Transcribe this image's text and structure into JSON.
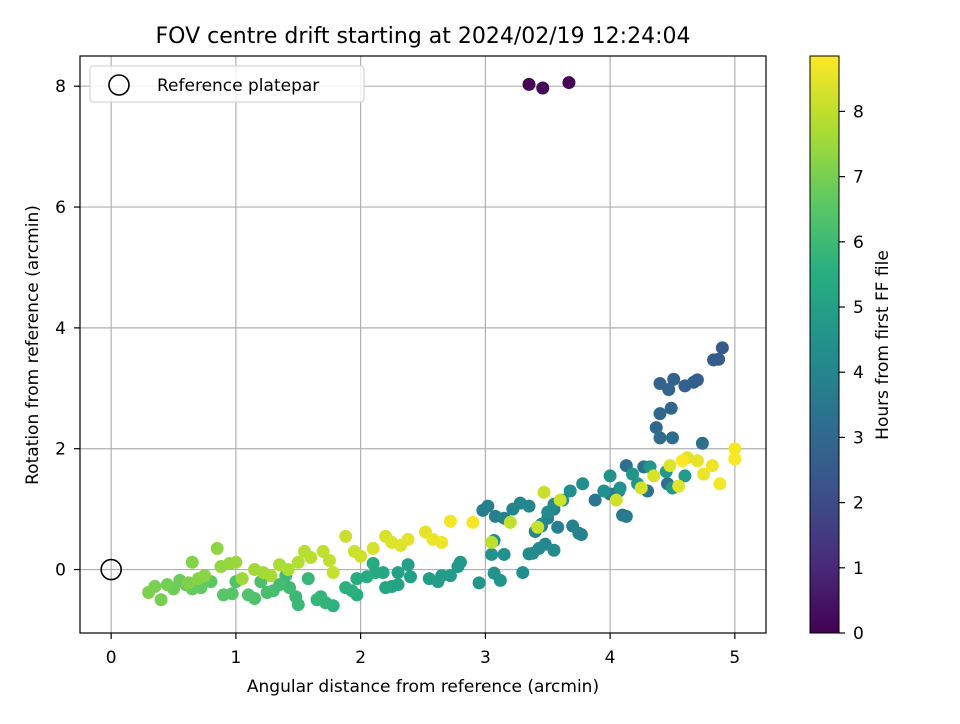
{
  "chart_data": {
    "type": "scatter",
    "title": "FOV centre drift starting at 2024/02/19 12:24:04",
    "xlabel": "Angular distance from reference (arcmin)",
    "ylabel": "Rotation from reference (arcmin)",
    "xlim": [
      -0.25,
      5.25
    ],
    "ylim": [
      -1.05,
      8.5
    ],
    "xticks": [
      0,
      1,
      2,
      3,
      4,
      5
    ],
    "yticks": [
      0,
      2,
      4,
      6,
      8
    ],
    "grid": true,
    "legend": {
      "placement": "top-left",
      "entries": [
        {
          "label": "Reference platepar",
          "marker": "open-circle"
        }
      ]
    },
    "reference_point": {
      "x": 0,
      "y": 0
    },
    "colorbar": {
      "label": "Hours from first FF file",
      "range": [
        0,
        8.85
      ],
      "ticks": [
        0,
        1,
        2,
        3,
        4,
        5,
        6,
        7,
        8
      ],
      "colormap": "viridis"
    },
    "points": [
      [
        3.35,
        8.03,
        0.05
      ],
      [
        3.46,
        7.97,
        0.08
      ],
      [
        3.67,
        8.06,
        0.1
      ],
      [
        4.9,
        3.67,
        2.5
      ],
      [
        4.83,
        3.47,
        2.55
      ],
      [
        4.87,
        3.48,
        2.6
      ],
      [
        4.7,
        3.14,
        2.65
      ],
      [
        4.67,
        3.1,
        2.7
      ],
      [
        4.6,
        3.04,
        2.75
      ],
      [
        4.51,
        3.15,
        2.8
      ],
      [
        4.4,
        3.08,
        2.85
      ],
      [
        4.47,
        2.98,
        2.9
      ],
      [
        4.49,
        2.67,
        2.95
      ],
      [
        4.4,
        2.58,
        3.0
      ],
      [
        4.37,
        2.35,
        3.05
      ],
      [
        4.4,
        2.18,
        3.1
      ],
      [
        4.5,
        2.18,
        3.15
      ],
      [
        4.74,
        2.09,
        3.2
      ],
      [
        4.13,
        1.72,
        3.25
      ],
      [
        4.27,
        1.7,
        3.3
      ],
      [
        4.46,
        1.42,
        3.35
      ],
      [
        4.3,
        1.3,
        3.4
      ],
      [
        3.88,
        1.15,
        3.45
      ],
      [
        4.07,
        1.3,
        3.5
      ],
      [
        4.0,
        1.25,
        3.55
      ],
      [
        4.1,
        0.9,
        3.6
      ],
      [
        4.13,
        0.88,
        3.65
      ],
      [
        3.55,
        1.0,
        3.7
      ],
      [
        3.5,
        0.85,
        3.75
      ],
      [
        3.58,
        0.7,
        3.8
      ],
      [
        3.7,
        0.72,
        3.85
      ],
      [
        3.75,
        0.6,
        3.9
      ],
      [
        3.77,
        0.58,
        3.95
      ],
      [
        3.45,
        0.72,
        4.0
      ],
      [
        3.4,
        0.63,
        4.05
      ],
      [
        3.48,
        0.42,
        4.1
      ],
      [
        3.43,
        0.35,
        4.15
      ],
      [
        3.55,
        0.32,
        4.2
      ],
      [
        3.38,
        0.27,
        4.25
      ],
      [
        3.35,
        0.26,
        4.3
      ],
      [
        3.3,
        -0.05,
        4.35
      ],
      [
        3.07,
        0.48,
        4.4
      ],
      [
        3.15,
        0.25,
        4.45
      ],
      [
        3.05,
        0.25,
        4.5
      ],
      [
        3.07,
        -0.06,
        4.55
      ],
      [
        3.12,
        -0.18,
        4.6
      ],
      [
        2.95,
        -0.22,
        4.65
      ],
      [
        2.8,
        0.12,
        4.7
      ],
      [
        2.78,
        0.05,
        4.75
      ],
      [
        2.72,
        -0.1,
        4.8
      ],
      [
        2.65,
        -0.1,
        4.85
      ],
      [
        2.62,
        -0.2,
        4.9
      ],
      [
        2.55,
        -0.15,
        4.95
      ],
      [
        2.4,
        -0.12,
        5.0
      ],
      [
        2.38,
        0.08,
        5.05
      ],
      [
        2.3,
        -0.05,
        5.1
      ],
      [
        2.3,
        -0.25,
        5.15
      ],
      [
        2.25,
        -0.28,
        5.2
      ],
      [
        2.2,
        -0.3,
        5.25
      ],
      [
        2.18,
        -0.05,
        5.3
      ],
      [
        2.12,
        -0.05,
        5.35
      ],
      [
        2.1,
        0.1,
        5.4
      ],
      [
        2.05,
        -0.12,
        5.45
      ],
      [
        1.97,
        -0.15,
        5.5
      ],
      [
        1.97,
        -0.42,
        5.55
      ],
      [
        1.88,
        -0.3,
        5.6
      ],
      [
        1.93,
        -0.35,
        5.65
      ],
      [
        1.78,
        -0.6,
        5.7
      ],
      [
        1.72,
        -0.55,
        5.75
      ],
      [
        1.68,
        -0.45,
        5.8
      ],
      [
        1.65,
        -0.5,
        5.85
      ],
      [
        1.58,
        -0.15,
        5.9
      ],
      [
        1.5,
        -0.58,
        5.95
      ],
      [
        1.48,
        -0.45,
        6.0
      ],
      [
        1.43,
        -0.3,
        6.05
      ],
      [
        1.4,
        -0.1,
        6.1
      ],
      [
        1.35,
        -0.25,
        6.15
      ],
      [
        1.3,
        -0.35,
        6.2
      ],
      [
        1.25,
        -0.38,
        6.25
      ],
      [
        1.2,
        -0.2,
        6.3
      ],
      [
        1.15,
        -0.48,
        6.35
      ],
      [
        1.1,
        -0.42,
        6.4
      ],
      [
        1.0,
        -0.2,
        6.45
      ],
      [
        0.97,
        -0.4,
        6.5
      ],
      [
        0.9,
        -0.42,
        6.55
      ],
      [
        0.8,
        -0.2,
        6.6
      ],
      [
        0.75,
        -0.15,
        6.65
      ],
      [
        0.72,
        -0.3,
        6.7
      ],
      [
        0.65,
        -0.32,
        6.75
      ],
      [
        0.6,
        -0.25,
        6.8
      ],
      [
        0.55,
        -0.18,
        6.85
      ],
      [
        0.5,
        -0.32,
        6.9
      ],
      [
        0.45,
        -0.25,
        6.95
      ],
      [
        0.4,
        -0.5,
        7.0
      ],
      [
        0.35,
        -0.28,
        7.05
      ],
      [
        0.3,
        -0.38,
        7.1
      ],
      [
        0.62,
        -0.22,
        7.15
      ],
      [
        0.65,
        0.12,
        7.2
      ],
      [
        0.7,
        -0.15,
        7.25
      ],
      [
        0.75,
        -0.1,
        7.3
      ],
      [
        0.85,
        0.35,
        7.35
      ],
      [
        0.88,
        0.05,
        7.4
      ],
      [
        0.95,
        0.1,
        7.45
      ],
      [
        1.0,
        0.12,
        7.5
      ],
      [
        1.05,
        -0.15,
        7.55
      ],
      [
        1.15,
        0.0,
        7.6
      ],
      [
        1.22,
        -0.05,
        7.65
      ],
      [
        1.28,
        -0.1,
        7.7
      ],
      [
        1.35,
        0.08,
        7.75
      ],
      [
        1.42,
        0.0,
        7.8
      ],
      [
        1.5,
        0.12,
        7.85
      ],
      [
        1.55,
        0.3,
        7.9
      ],
      [
        1.6,
        0.2,
        7.95
      ],
      [
        1.7,
        0.3,
        8.0
      ],
      [
        1.75,
        0.15,
        8.05
      ],
      [
        1.78,
        -0.05,
        8.1
      ],
      [
        1.88,
        0.55,
        8.15
      ],
      [
        1.95,
        0.3,
        8.2
      ],
      [
        2.0,
        0.22,
        8.25
      ],
      [
        2.1,
        0.35,
        8.3
      ],
      [
        2.2,
        0.55,
        8.35
      ],
      [
        2.25,
        0.45,
        8.4
      ],
      [
        2.32,
        0.4,
        8.45
      ],
      [
        2.38,
        0.5,
        8.5
      ],
      [
        2.52,
        0.62,
        8.55
      ],
      [
        2.58,
        0.5,
        8.6
      ],
      [
        2.65,
        0.45,
        8.65
      ],
      [
        2.72,
        0.8,
        8.7
      ],
      [
        2.9,
        0.78,
        8.75
      ],
      [
        2.98,
        0.98,
        3.8
      ],
      [
        3.02,
        1.05,
        3.85
      ],
      [
        3.08,
        0.88,
        3.9
      ],
      [
        3.15,
        0.85,
        3.95
      ],
      [
        3.22,
        1.0,
        4.0
      ],
      [
        3.28,
        1.1,
        4.05
      ],
      [
        3.35,
        1.05,
        4.1
      ],
      [
        3.45,
        0.75,
        4.15
      ],
      [
        3.5,
        0.95,
        4.2
      ],
      [
        3.55,
        1.08,
        4.25
      ],
      [
        3.62,
        1.15,
        4.3
      ],
      [
        3.68,
        1.3,
        4.35
      ],
      [
        3.78,
        1.42,
        4.4
      ],
      [
        3.95,
        1.3,
        4.45
      ],
      [
        4.0,
        1.55,
        4.5
      ],
      [
        4.08,
        1.35,
        4.55
      ],
      [
        4.18,
        1.58,
        4.6
      ],
      [
        4.22,
        1.42,
        4.65
      ],
      [
        4.32,
        1.7,
        4.7
      ],
      [
        4.45,
        1.62,
        4.75
      ],
      [
        4.5,
        1.35,
        4.8
      ],
      [
        4.6,
        1.55,
        4.85
      ],
      [
        3.05,
        0.45,
        8.0
      ],
      [
        3.2,
        0.78,
        8.05
      ],
      [
        3.42,
        0.7,
        8.1
      ],
      [
        3.47,
        1.28,
        8.15
      ],
      [
        3.6,
        1.15,
        8.2
      ],
      [
        4.05,
        1.15,
        8.25
      ],
      [
        4.25,
        1.35,
        8.3
      ],
      [
        4.35,
        1.55,
        8.35
      ],
      [
        4.48,
        1.72,
        8.4
      ],
      [
        4.55,
        1.38,
        8.45
      ],
      [
        4.62,
        1.85,
        8.5
      ],
      [
        4.7,
        1.8,
        8.55
      ],
      [
        4.75,
        1.58,
        8.6
      ],
      [
        4.82,
        1.72,
        8.65
      ],
      [
        4.88,
        1.42,
        8.7
      ],
      [
        5.0,
        2.0,
        8.75
      ],
      [
        5.0,
        1.83,
        8.8
      ],
      [
        4.58,
        1.8,
        8.85
      ]
    ]
  }
}
